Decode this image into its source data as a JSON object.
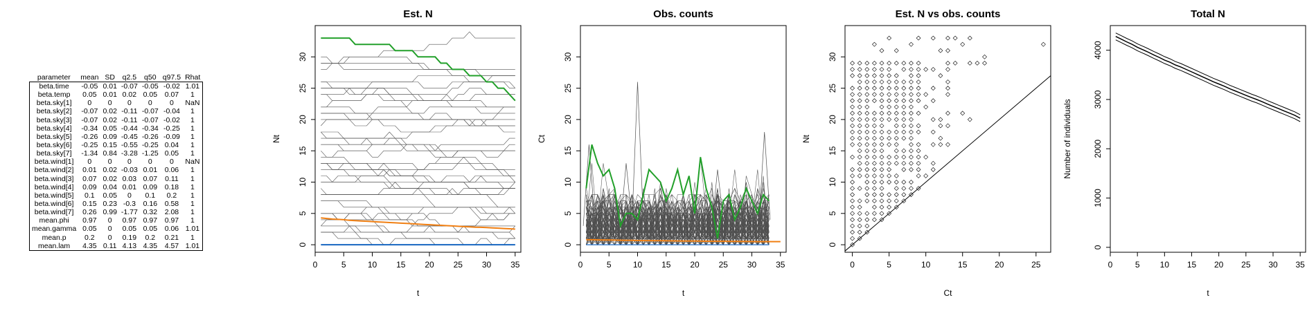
{
  "table": {
    "columns": [
      "parameter",
      "mean",
      "SD",
      "q2.5",
      "q50",
      "q97.5",
      "Rhat"
    ],
    "rows": [
      [
        "beta.time",
        "-0.05",
        "0.01",
        "-0.07",
        "-0.05",
        "-0.02",
        "1.01"
      ],
      [
        "beta.temp",
        "0.05",
        "0.01",
        "0.02",
        "0.05",
        "0.07",
        "1"
      ],
      [
        "beta.sky[1]",
        "0",
        "0",
        "0",
        "0",
        "0",
        "NaN"
      ],
      [
        "beta.sky[2]",
        "-0.07",
        "0.02",
        "-0.11",
        "-0.07",
        "-0.04",
        "1"
      ],
      [
        "beta.sky[3]",
        "-0.07",
        "0.02",
        "-0.11",
        "-0.07",
        "-0.02",
        "1"
      ],
      [
        "beta.sky[4]",
        "-0.34",
        "0.05",
        "-0.44",
        "-0.34",
        "-0.25",
        "1"
      ],
      [
        "beta.sky[5]",
        "-0.26",
        "0.09",
        "-0.45",
        "-0.26",
        "-0.09",
        "1"
      ],
      [
        "beta.sky[6]",
        "-0.25",
        "0.15",
        "-0.55",
        "-0.25",
        "0.04",
        "1"
      ],
      [
        "beta.sky[7]",
        "-1.34",
        "0.84",
        "-3.28",
        "-1.25",
        "0.05",
        "1"
      ],
      [
        "beta.wind[1]",
        "0",
        "0",
        "0",
        "0",
        "0",
        "NaN"
      ],
      [
        "beta.wind[2]",
        "0.01",
        "0.02",
        "-0.03",
        "0.01",
        "0.06",
        "1"
      ],
      [
        "beta.wind[3]",
        "0.07",
        "0.02",
        "0.03",
        "0.07",
        "0.11",
        "1"
      ],
      [
        "beta.wind[4]",
        "0.09",
        "0.04",
        "0.01",
        "0.09",
        "0.18",
        "1"
      ],
      [
        "beta.wind[5]",
        "0.1",
        "0.05",
        "0",
        "0.1",
        "0.2",
        "1"
      ],
      [
        "beta.wind[6]",
        "0.15",
        "0.23",
        "-0.3",
        "0.16",
        "0.58",
        "1"
      ],
      [
        "beta.wind[7]",
        "0.26",
        "0.99",
        "-1.77",
        "0.32",
        "2.08",
        "1"
      ],
      [
        "mean.phi",
        "0.97",
        "0",
        "0.97",
        "0.97",
        "0.97",
        "1"
      ],
      [
        "mean.gamma",
        "0.05",
        "0",
        "0.05",
        "0.05",
        "0.06",
        "1.01"
      ],
      [
        "mean.p",
        "0.2",
        "0",
        "0.19",
        "0.2",
        "0.21",
        "1"
      ],
      [
        "mean.lam",
        "4.35",
        "0.11",
        "4.13",
        "4.35",
        "4.57",
        "1.01"
      ]
    ]
  },
  "colors": {
    "green": "#22a02a",
    "orange": "#f07f12",
    "blue": "#1565c0",
    "line": "#505050",
    "axis": "#000000"
  },
  "chart_data": [
    {
      "type": "line",
      "title": "Est. N",
      "xlabel": "t",
      "ylabel": "Nt",
      "xlim": [
        0,
        36
      ],
      "ylim": [
        -1.2,
        35
      ],
      "xticks": [
        0,
        5,
        10,
        15,
        20,
        25,
        30,
        35
      ],
      "yticks": [
        0,
        5,
        10,
        15,
        20,
        25,
        30
      ],
      "n_site_series_approx": 40,
      "series": [
        {
          "values": [
            33,
            33,
            33,
            33,
            33,
            33,
            32,
            32,
            32,
            32,
            32,
            32,
            32,
            31,
            31,
            31,
            31,
            30,
            30,
            30,
            30,
            29,
            29,
            28,
            28,
            28,
            27,
            27,
            27,
            26,
            26,
            25,
            25,
            24,
            23
          ],
          "color": "green"
        },
        {
          "values": [
            4.3,
            4.2,
            4.1,
            4.05,
            4.0,
            3.9,
            3.85,
            3.8,
            3.75,
            3.7,
            3.65,
            3.6,
            3.55,
            3.5,
            3.45,
            3.4,
            3.35,
            3.3,
            3.25,
            3.2,
            3.15,
            3.1,
            3.05,
            3.0,
            2.95,
            2.9,
            2.85,
            2.8,
            2.78,
            2.75,
            2.7,
            2.65,
            2.6,
            2.55,
            2.5
          ],
          "color": "orange"
        },
        {
          "values": [
            0,
            0,
            0,
            0,
            0,
            0,
            0,
            0,
            0,
            0,
            0,
            0,
            0,
            0,
            0,
            0,
            0,
            0,
            0,
            0,
            0,
            0,
            0,
            0,
            0,
            0,
            0,
            0,
            0,
            0,
            0,
            0,
            0,
            0,
            0
          ],
          "color": "blue"
        }
      ]
    },
    {
      "type": "line",
      "title": "Obs. counts",
      "xlabel": "t",
      "ylabel": "Ct",
      "xlim": [
        0,
        36
      ],
      "ylim": [
        -1.2,
        35
      ],
      "xticks": [
        0,
        5,
        10,
        15,
        20,
        25,
        30,
        35
      ],
      "yticks": [
        0,
        5,
        10,
        15,
        20,
        25,
        30
      ],
      "series": [
        {
          "values": [
            9,
            16,
            13,
            11,
            12,
            9,
            3,
            5,
            5,
            4,
            8,
            12,
            11,
            10,
            7,
            9,
            12,
            8,
            11,
            5,
            14,
            9,
            6,
            1,
            7,
            8,
            4,
            6,
            9,
            7,
            5,
            8,
            7
          ],
          "color": "green"
        },
        {
          "values": [
            0.8,
            0.8,
            0.78,
            0.76,
            0.75,
            0.74,
            0.72,
            0.7,
            0.7,
            0.68,
            0.67,
            0.66,
            0.65,
            0.64,
            0.63,
            0.62,
            0.61,
            0.6,
            0.6,
            0.59,
            0.58,
            0.57,
            0.56,
            0.55,
            0.55,
            0.54,
            0.53,
            0.52,
            0.52,
            0.51,
            0.5,
            0.5,
            0.5,
            0.5,
            0.5
          ],
          "color": "orange"
        },
        {
          "values": [
            26,
            16,
            18
          ],
          "note_points": [
            10,
            1,
            33
          ],
          "color": "grey"
        }
      ]
    },
    {
      "type": "scatter",
      "title": "Est. N vs obs. counts",
      "xlabel": "Ct",
      "ylabel": "Nt",
      "xlim": [
        -1,
        27
      ],
      "ylim": [
        -1.2,
        35
      ],
      "xticks": [
        0,
        5,
        10,
        15,
        20,
        25
      ],
      "yticks": [
        0,
        5,
        10,
        15,
        20,
        25,
        30
      ],
      "reference_line": "y = x"
    },
    {
      "type": "line",
      "title": "Total N",
      "xlabel": "t",
      "ylabel": "Number of individuals",
      "xlim": [
        0,
        36
      ],
      "ylim": [
        -100,
        4500
      ],
      "xticks": [
        0,
        5,
        10,
        15,
        20,
        25,
        30,
        35
      ],
      "yticks": [
        0,
        1000,
        2000,
        3000,
        4000
      ],
      "series": [
        {
          "values": [
            4280,
            4225,
            4170,
            4120,
            4060,
            4010,
            3960,
            3905,
            3855,
            3800,
            3755,
            3700,
            3660,
            3610,
            3560,
            3510,
            3460,
            3410,
            3360,
            3315,
            3270,
            3220,
            3175,
            3130,
            3085,
            3040,
            3000,
            2955,
            2905,
            2860,
            2815,
            2770,
            2725,
            2680,
            2620
          ]
        }
      ]
    }
  ]
}
